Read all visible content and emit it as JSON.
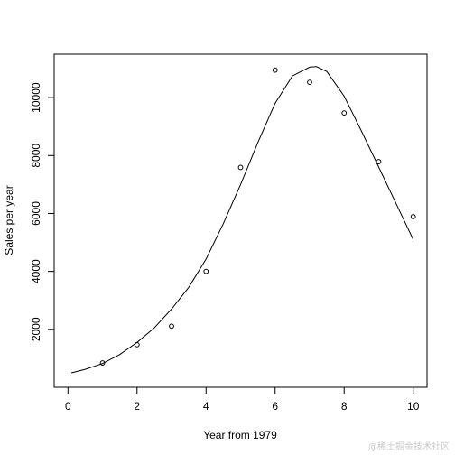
{
  "chart_data": {
    "type": "scatter",
    "title": "",
    "xlabel": "Year from 1979",
    "ylabel": "Sales per year",
    "xlim": [
      -0.4,
      10.4
    ],
    "ylim": [
      0,
      11500
    ],
    "xticks": [
      0,
      2,
      4,
      6,
      8,
      10
    ],
    "xtick_labels": [
      "0",
      "2",
      "4",
      "6",
      "8",
      "10"
    ],
    "yticks": [
      2000,
      4000,
      6000,
      8000,
      10000
    ],
    "ytick_labels": [
      "2000",
      "4000",
      "6000",
      "8000",
      "10000"
    ],
    "grid": false,
    "legend": "none",
    "series": [
      {
        "kind": "points",
        "marker": "open-circle",
        "x": [
          1,
          2,
          3,
          4,
          5,
          6,
          7,
          8,
          9,
          10
        ],
        "y": [
          840,
          1470,
          2110,
          4000,
          7590,
          10950,
          10530,
          9470,
          7790,
          5890
        ]
      },
      {
        "kind": "line",
        "x": [
          0.1,
          0.5,
          1,
          1.5,
          2,
          2.5,
          3,
          3.5,
          4,
          4.5,
          5,
          5.5,
          6,
          6.5,
          7,
          7.2,
          7.5,
          8,
          8.5,
          9,
          9.5,
          10
        ],
        "y": [
          500,
          620,
          820,
          1130,
          1550,
          2050,
          2700,
          3450,
          4430,
          5650,
          7000,
          8450,
          9800,
          10750,
          11050,
          11070,
          10900,
          10050,
          8850,
          7600,
          6350,
          5100
        ]
      }
    ]
  },
  "watermark": "@稀土掘金技术社区"
}
